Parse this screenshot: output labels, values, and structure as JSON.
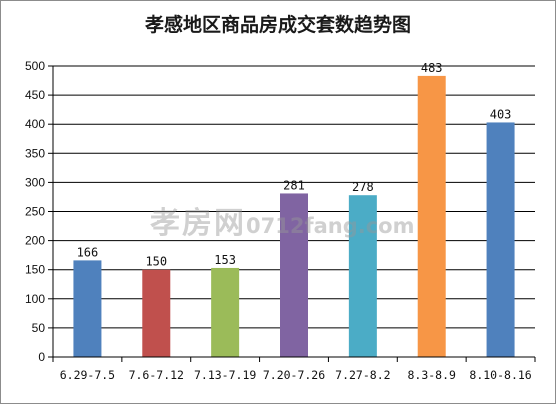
{
  "chart_data": {
    "type": "bar",
    "title": "孝感地区商品房成交套数趋势图",
    "categories": [
      "6.29-7.5",
      "7.6-7.12",
      "7.13-7.19",
      "7.20-7.26",
      "7.27-8.2",
      "8.3-8.9",
      "8.10-8.16"
    ],
    "category_labels": [
      "6.29-7.5",
      "7.6-7.12",
      "7.13-7.19",
      "7.20-7.26",
      "7.27-8.2",
      "8.3-8.9",
      "8.10-8.16"
    ],
    "values": [
      166,
      150,
      153,
      281,
      278,
      483,
      403
    ],
    "colors": [
      "#4f81bd",
      "#c0504d",
      "#9bbb59",
      "#8064a2",
      "#4bacc6",
      "#f79646",
      "#4f81bd"
    ],
    "ylim": [
      0,
      500
    ],
    "yticks": [
      0,
      50,
      100,
      150,
      200,
      250,
      300,
      350,
      400,
      450,
      500
    ],
    "grid": true,
    "legend": "none"
  },
  "watermark": {
    "brand": "孝房网",
    "url": "0712fang.com"
  }
}
